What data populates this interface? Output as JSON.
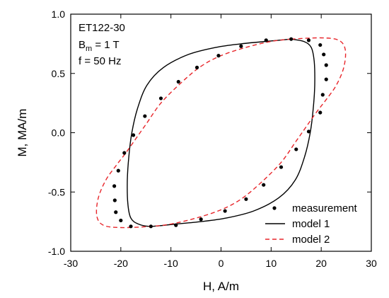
{
  "chart_data": {
    "type": "line",
    "xlabel": "H, A/m",
    "ylabel": "M, MA/m",
    "xlim": [
      -30,
      30
    ],
    "ylim": [
      -1.0,
      1.0
    ],
    "x_ticks": [
      -30,
      -20,
      -10,
      0,
      10,
      20,
      30
    ],
    "x_tick_labels": [
      "-30",
      "-20",
      "-10",
      "0",
      "10",
      "20",
      "30"
    ],
    "y_ticks": [
      -1.0,
      -0.5,
      0.0,
      0.5,
      1.0
    ],
    "y_tick_labels": [
      "-1.0",
      "-0.5",
      "0.0",
      "0.5",
      "1.0"
    ],
    "grid": false,
    "legend_position": "bottom-right",
    "annotations": {
      "line1": "ET122-30",
      "line2_main": "B",
      "line2_sub": "m",
      "line2_rest": " = 1 T",
      "line3": "f = 50 Hz"
    },
    "series": [
      {
        "name": "measurement",
        "style": "markers",
        "color": "#000000",
        "points": [
          [
            14,
            0.79
          ],
          [
            17.5,
            0.78
          ],
          [
            19.8,
            0.74
          ],
          [
            20.5,
            0.66
          ],
          [
            21,
            0.57
          ],
          [
            21,
            0.45
          ],
          [
            20.3,
            0.32
          ],
          [
            19.8,
            0.17
          ],
          [
            17.5,
            0.01
          ],
          [
            15,
            -0.14
          ],
          [
            12,
            -0.29
          ],
          [
            8.5,
            -0.44
          ],
          [
            5,
            -0.56
          ],
          [
            0.8,
            -0.66
          ],
          [
            -4,
            -0.73
          ],
          [
            -9,
            -0.78
          ],
          [
            -14,
            -0.79
          ],
          [
            -18,
            -0.79
          ],
          [
            -20,
            -0.74
          ],
          [
            -21,
            -0.67
          ],
          [
            -21.2,
            -0.57
          ],
          [
            -21.3,
            -0.45
          ],
          [
            -20.5,
            -0.32
          ],
          [
            -19.3,
            -0.17
          ],
          [
            -17.5,
            -0.02
          ],
          [
            -15.2,
            0.14
          ],
          [
            -12,
            0.29
          ],
          [
            -8.5,
            0.43
          ],
          [
            -4.8,
            0.55
          ],
          [
            -0.5,
            0.65
          ],
          [
            4,
            0.73
          ],
          [
            9,
            0.78
          ]
        ]
      },
      {
        "name": "model 1",
        "style": "solid",
        "color": "#000000",
        "points": [
          [
            14,
            0.79
          ],
          [
            16.5,
            0.77
          ],
          [
            18,
            0.72
          ],
          [
            18.6,
            0.6
          ],
          [
            18.7,
            0.4
          ],
          [
            18.4,
            0.2
          ],
          [
            17.8,
            0.0
          ],
          [
            16.7,
            -0.2
          ],
          [
            14.8,
            -0.4
          ],
          [
            11.5,
            -0.55
          ],
          [
            6.5,
            -0.66
          ],
          [
            1,
            -0.72
          ],
          [
            -4,
            -0.75
          ],
          [
            -9,
            -0.77
          ],
          [
            -14,
            -0.79
          ],
          [
            -16.5,
            -0.77
          ],
          [
            -18,
            -0.72
          ],
          [
            -18.6,
            -0.6
          ],
          [
            -18.7,
            -0.4
          ],
          [
            -18.4,
            -0.2
          ],
          [
            -17.8,
            0.0
          ],
          [
            -16.7,
            0.2
          ],
          [
            -14.8,
            0.4
          ],
          [
            -11.5,
            0.55
          ],
          [
            -6.5,
            0.66
          ],
          [
            -1,
            0.72
          ],
          [
            4,
            0.75
          ],
          [
            9,
            0.77
          ],
          [
            14,
            0.79
          ]
        ]
      },
      {
        "name": "model 2",
        "style": "dashed",
        "color": "#e8262b",
        "points": [
          [
            14,
            0.79
          ],
          [
            20,
            0.8
          ],
          [
            23.5,
            0.78
          ],
          [
            24.8,
            0.7
          ],
          [
            24.5,
            0.55
          ],
          [
            23,
            0.4
          ],
          [
            21,
            0.28
          ],
          [
            19,
            0.17
          ],
          [
            17,
            0.05
          ],
          [
            15,
            -0.07
          ],
          [
            12,
            -0.25
          ],
          [
            8,
            -0.42
          ],
          [
            4,
            -0.56
          ],
          [
            0,
            -0.65
          ],
          [
            -5,
            -0.72
          ],
          [
            -10,
            -0.77
          ],
          [
            -14,
            -0.79
          ],
          [
            -20,
            -0.8
          ],
          [
            -23.5,
            -0.78
          ],
          [
            -24.8,
            -0.7
          ],
          [
            -24.5,
            -0.55
          ],
          [
            -23,
            -0.4
          ],
          [
            -21,
            -0.28
          ],
          [
            -19,
            -0.17
          ],
          [
            -17,
            -0.05
          ],
          [
            -15,
            0.07
          ],
          [
            -12,
            0.25
          ],
          [
            -8,
            0.42
          ],
          [
            -4,
            0.56
          ],
          [
            0,
            0.65
          ],
          [
            5,
            0.72
          ],
          [
            10,
            0.77
          ],
          [
            14,
            0.79
          ]
        ]
      }
    ]
  }
}
